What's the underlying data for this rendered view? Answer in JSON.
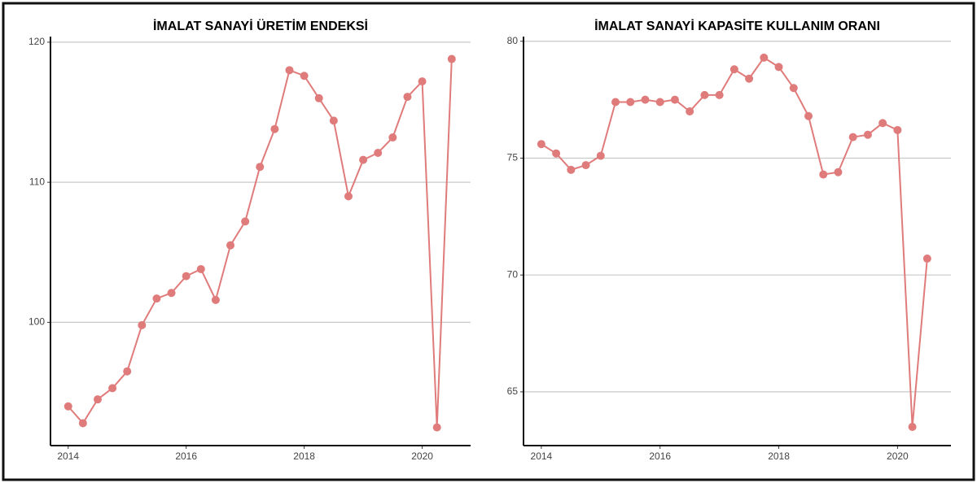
{
  "chart_data": [
    {
      "type": "line",
      "title": "İMALAT SANAYİ ÜRETİM ENDEKSİ",
      "x": [
        2014,
        2014.25,
        2014.5,
        2014.75,
        2015,
        2015.25,
        2015.5,
        2015.75,
        2016,
        2016.25,
        2016.5,
        2016.75,
        2017,
        2017.25,
        2017.5,
        2017.75,
        2018,
        2018.25,
        2018.5,
        2018.75,
        2019,
        2019.25,
        2019.5,
        2019.75,
        2020,
        2020.25,
        2020.5
      ],
      "series": [
        {
          "color": "#e07b7b",
          "values": [
            94.0,
            92.8,
            94.5,
            95.3,
            96.5,
            99.8,
            101.7,
            102.1,
            103.3,
            103.8,
            101.6,
            105.5,
            107.2,
            111.1,
            113.8,
            118.0,
            117.6,
            116.0,
            114.4,
            109.0,
            111.6,
            112.1,
            113.2,
            116.1,
            117.2,
            92.5,
            118.8
          ]
        }
      ],
      "xlim": [
        2013.7,
        2020.82
      ],
      "xticks": [
        2014,
        2016,
        2018,
        2020
      ],
      "ylim": [
        91.2,
        120.4
      ],
      "yticks": [
        100,
        110,
        120
      ],
      "grid": true
    },
    {
      "type": "line",
      "title": "İMALAT SANAYİ KAPASİTE KULLANIM ORANI",
      "x": [
        2014,
        2014.25,
        2014.5,
        2014.75,
        2015,
        2015.25,
        2015.5,
        2015.75,
        2016,
        2016.25,
        2016.5,
        2016.75,
        2017,
        2017.25,
        2017.5,
        2017.75,
        2018,
        2018.25,
        2018.5,
        2018.75,
        2019,
        2019.25,
        2019.5,
        2019.75,
        2020,
        2020.25,
        2020.5
      ],
      "series": [
        {
          "color": "#e07b7b",
          "values": [
            75.6,
            75.2,
            74.5,
            74.7,
            75.1,
            77.4,
            77.4,
            77.5,
            77.4,
            77.5,
            77.0,
            77.7,
            77.7,
            78.8,
            78.4,
            79.3,
            78.9,
            78.0,
            76.8,
            74.3,
            74.4,
            75.9,
            76.0,
            76.5,
            76.2,
            63.5,
            70.7
          ]
        }
      ],
      "xlim": [
        2013.7,
        2020.9
      ],
      "xticks": [
        2014,
        2016,
        2018,
        2020
      ],
      "ylim": [
        62.7,
        80.2
      ],
      "yticks": [
        65,
        70,
        75,
        80
      ],
      "grid": true
    }
  ]
}
